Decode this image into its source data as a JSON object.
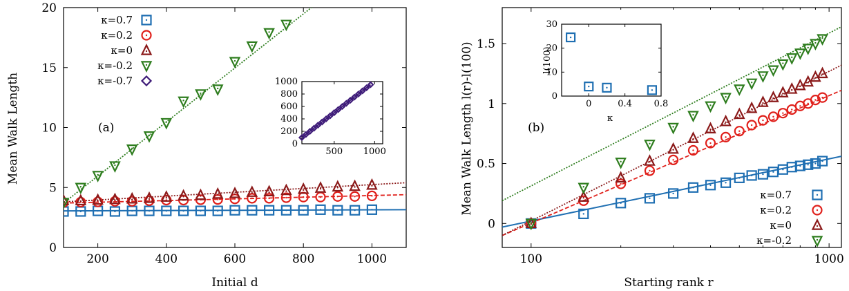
{
  "chart_data": [
    {
      "type": "scatter",
      "panel_label": "(a)",
      "xlabel": "Initial d",
      "ylabel": "Mean Walk Length",
      "xlim": [
        100,
        1100
      ],
      "ylim": [
        0,
        20
      ],
      "xticks": [
        200,
        400,
        600,
        800,
        1000
      ],
      "yticks": [
        0,
        5,
        10,
        15,
        20
      ],
      "legend_position": "top-left",
      "x": [
        100,
        150,
        200,
        250,
        300,
        350,
        400,
        450,
        500,
        550,
        600,
        650,
        700,
        750,
        800,
        850,
        900,
        950,
        1000
      ],
      "series": [
        {
          "name": "κ=0.7",
          "marker": "square",
          "color": "#1f6fb2",
          "values": [
            3.0,
            3.0,
            3.05,
            3.0,
            3.05,
            3.05,
            3.05,
            3.05,
            3.05,
            3.05,
            3.1,
            3.1,
            3.1,
            3.1,
            3.1,
            3.15,
            3.1,
            3.1,
            3.15
          ],
          "fit": {
            "style": "solid",
            "x0": 100,
            "y0": 3.05,
            "x1": 1100,
            "y1": 3.15
          }
        },
        {
          "name": "κ=0.2",
          "marker": "circle",
          "color": "#e0201b",
          "values": [
            3.75,
            3.78,
            3.8,
            3.85,
            3.85,
            3.9,
            3.95,
            3.95,
            3.98,
            4.0,
            4.05,
            4.1,
            4.1,
            4.15,
            4.2,
            4.2,
            4.25,
            4.25,
            4.3
          ],
          "fit": {
            "style": "dashed",
            "x0": 100,
            "y0": 3.7,
            "x1": 1100,
            "y1": 4.4
          }
        },
        {
          "name": "κ=0",
          "marker": "triangle-up",
          "color": "#8b1a1a",
          "values": [
            3.9,
            3.9,
            3.95,
            4.0,
            4.05,
            4.1,
            4.2,
            4.3,
            4.35,
            4.45,
            4.5,
            4.6,
            4.65,
            4.75,
            4.85,
            4.95,
            5.05,
            5.1,
            5.2
          ],
          "fit": {
            "style": "dotted",
            "x0": 100,
            "y0": 3.8,
            "x1": 1100,
            "y1": 5.4
          }
        },
        {
          "name": "κ=-0.2",
          "marker": "triangle-down",
          "color": "#2e7d1e",
          "values": [
            3.75,
            5.0,
            6.0,
            6.8,
            8.2,
            9.3,
            10.4,
            12.2,
            12.8,
            13.2,
            15.5,
            16.8,
            17.9,
            18.6
          ],
          "fit": {
            "style": "dotted",
            "x0": 100,
            "y0": 3.7,
            "x1": 850,
            "y1": 20.6
          }
        },
        {
          "name": "κ=-0.7",
          "marker": "diamond",
          "color": "#3d1a78",
          "values": []
        }
      ],
      "inset": {
        "xlim": [
          100,
          1100
        ],
        "ylim": [
          0,
          1000
        ],
        "xticks": [
          500,
          1000
        ],
        "yticks": [
          0,
          200,
          400,
          600,
          800,
          1000
        ],
        "series": [
          {
            "name": "κ=-0.7",
            "marker": "diamond",
            "color": "#3d1a78",
            "x": [
              100,
              150,
              200,
              250,
              300,
              350,
              400,
              450,
              500,
              550,
              600,
              650,
              700,
              750,
              800,
              850,
              900,
              950
            ],
            "values": [
              100,
              150,
              200,
              250,
              300,
              350,
              400,
              450,
              500,
              550,
              600,
              650,
              700,
              750,
              800,
              850,
              900,
              950
            ]
          }
        ]
      }
    },
    {
      "type": "scatter",
      "panel_label": "(b)",
      "xlabel": "Starting rank r",
      "ylabel": "Mean Walk Length l(r)-l(100)",
      "xscale": "log",
      "xlim": [
        80,
        1100
      ],
      "ylim": [
        -0.2,
        1.8
      ],
      "xticks": [
        100,
        1000
      ],
      "yticks": [
        0,
        0.5,
        1,
        1.5
      ],
      "ytick_labels": [
        "0",
        "0.5",
        "1",
        "1.5"
      ],
      "legend_position": "bottom-right",
      "x": [
        100,
        150,
        200,
        250,
        300,
        350,
        400,
        450,
        500,
        550,
        600,
        650,
        700,
        750,
        800,
        850,
        900,
        950
      ],
      "series": [
        {
          "name": "κ=0.7",
          "marker": "square",
          "color": "#1f6fb2",
          "values": [
            0.0,
            0.08,
            0.17,
            0.21,
            0.25,
            0.3,
            0.32,
            0.34,
            0.38,
            0.4,
            0.41,
            0.43,
            0.45,
            0.47,
            0.48,
            0.49,
            0.5,
            0.52
          ],
          "fit": {
            "style": "solid",
            "x0": 80,
            "y0": -0.03,
            "x1": 1100,
            "y1": 0.56
          }
        },
        {
          "name": "κ=0.2",
          "marker": "circle",
          "color": "#e0201b",
          "values": [
            0.0,
            0.19,
            0.33,
            0.44,
            0.53,
            0.61,
            0.67,
            0.72,
            0.77,
            0.82,
            0.86,
            0.89,
            0.92,
            0.95,
            0.98,
            1.0,
            1.03,
            1.05
          ],
          "fit": {
            "style": "dashed",
            "x0": 80,
            "y0": -0.1,
            "x1": 1100,
            "y1": 1.11
          }
        },
        {
          "name": "κ=0",
          "marker": "triangle-up",
          "color": "#8b1a1a",
          "values": [
            0.0,
            0.22,
            0.38,
            0.52,
            0.62,
            0.71,
            0.79,
            0.85,
            0.91,
            0.96,
            1.01,
            1.05,
            1.09,
            1.12,
            1.15,
            1.18,
            1.22,
            1.25
          ],
          "fit": {
            "style": "dotted",
            "x0": 80,
            "y0": -0.1,
            "x1": 1100,
            "y1": 1.32
          }
        },
        {
          "name": "κ=-0.2",
          "marker": "triangle-down",
          "color": "#2e7d1e",
          "values": [
            0.0,
            0.3,
            0.51,
            0.66,
            0.8,
            0.9,
            0.98,
            1.05,
            1.12,
            1.17,
            1.23,
            1.28,
            1.33,
            1.38,
            1.42,
            1.46,
            1.5,
            1.54
          ],
          "fit": {
            "style": "dotted",
            "x0": 80,
            "y0": 0.19,
            "x1": 1100,
            "y1": 1.64
          }
        }
      ],
      "inset": {
        "xlabel": "κ",
        "ylabel": "l(100)",
        "xlim": [
          -0.3,
          0.8
        ],
        "ylim": [
          0,
          30
        ],
        "xticks": [
          0,
          0.4,
          0.8
        ],
        "yticks": [
          0,
          10,
          20,
          30
        ],
        "series": [
          {
            "name": "l(100)",
            "marker": "square",
            "color": "#1f6fb2",
            "x": [
              -0.2,
              0.0,
              0.2,
              0.7
            ],
            "values": [
              24.5,
              4.0,
              3.5,
              2.5
            ]
          }
        ]
      }
    }
  ]
}
